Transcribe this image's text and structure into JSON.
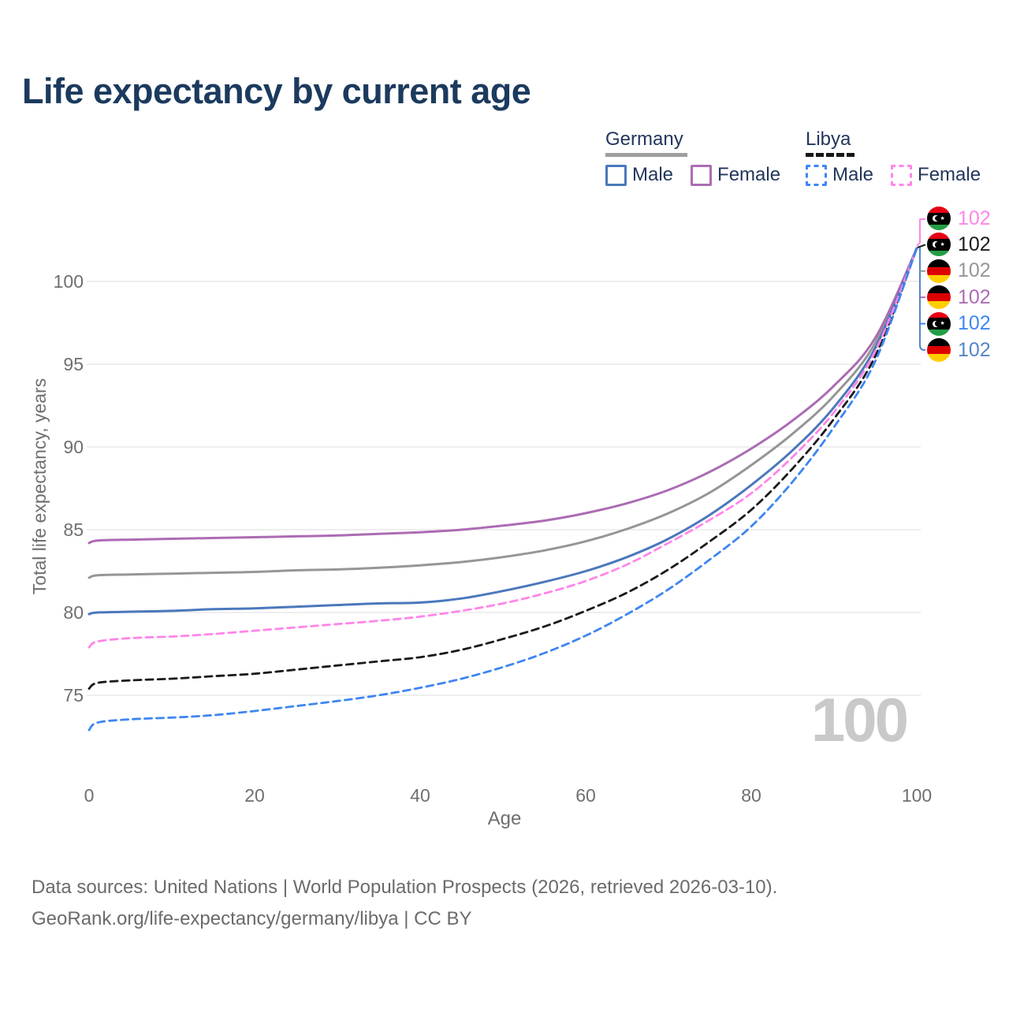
{
  "title": "Life expectancy by current age",
  "legend": {
    "germany": {
      "label": "Germany",
      "male": "Male",
      "female": "Female"
    },
    "libya": {
      "label": "Libya",
      "male": "Male",
      "female": "Female"
    }
  },
  "footer": {
    "line1": "Data sources: United Nations | World Population Prospects (2026, retrieved 2026-03-10).",
    "line2": "GeoRank.org/life-expectancy/germany/libya | CC BY"
  },
  "colors": {
    "title_text": "#1b3a5e",
    "legend_text": "#22365c",
    "germany_underline": "#9e9e9e",
    "libya_underline": "#161616",
    "germany_male": "#4a78bc",
    "germany_female": "#ab6cb3",
    "germany_total": "#969696",
    "libya_male": "#3e86f2",
    "libya_female": "#ff85e8",
    "libya_total": "#1a1a1a",
    "grid": "#e8e8e8",
    "axis_text": "#6f6f6f",
    "watermark": "#c9c9c9"
  },
  "chart_data": {
    "type": "line",
    "title": "Life expectancy by current age",
    "xlabel": "Age",
    "ylabel": "Total life expectancy, years",
    "xticks": [
      0,
      20,
      40,
      60,
      80,
      100
    ],
    "yticks": [
      75,
      80,
      85,
      90,
      95,
      100
    ],
    "xlim": [
      0,
      100
    ],
    "ylim": [
      72,
      103
    ],
    "grid": true,
    "legend_position": "top-right",
    "watermark": "100",
    "x": [
      0,
      1,
      5,
      10,
      15,
      20,
      25,
      30,
      35,
      40,
      45,
      50,
      55,
      60,
      65,
      70,
      75,
      80,
      85,
      90,
      95,
      100
    ],
    "series": [
      {
        "id": "germany-total",
        "name": "Germany",
        "country": "Germany",
        "sex": "Both",
        "style": "solid",
        "color": "#969696",
        "values": [
          82.1,
          82.25,
          82.3,
          82.35,
          82.4,
          82.45,
          82.55,
          82.6,
          82.7,
          82.85,
          83.05,
          83.35,
          83.75,
          84.3,
          85.05,
          86.0,
          87.25,
          88.9,
          90.8,
          93.1,
          96.3,
          102
        ]
      },
      {
        "id": "germany-female",
        "name": "Germany Female",
        "country": "Germany",
        "sex": "Female",
        "style": "solid",
        "color": "#ab6cb3",
        "values": [
          84.2,
          84.35,
          84.4,
          84.45,
          84.5,
          84.55,
          84.6,
          84.65,
          84.75,
          84.85,
          85.0,
          85.25,
          85.55,
          86.0,
          86.6,
          87.4,
          88.5,
          89.9,
          91.6,
          93.7,
          96.6,
          102
        ]
      },
      {
        "id": "germany-male",
        "name": "Germany Male",
        "country": "Germany",
        "sex": "Male",
        "style": "solid",
        "color": "#4a78bc",
        "values": [
          79.9,
          80.0,
          80.05,
          80.1,
          80.2,
          80.25,
          80.35,
          80.45,
          80.55,
          80.6,
          80.85,
          81.3,
          81.85,
          82.5,
          83.35,
          84.45,
          85.9,
          87.7,
          89.8,
          92.4,
          96.0,
          102
        ]
      },
      {
        "id": "libya-total",
        "name": "Libya",
        "country": "Libya",
        "sex": "Both",
        "style": "dashed",
        "color": "#1a1a1a",
        "values": [
          75.4,
          75.75,
          75.9,
          76.0,
          76.15,
          76.3,
          76.55,
          76.8,
          77.05,
          77.3,
          77.75,
          78.4,
          79.15,
          80.1,
          81.2,
          82.6,
          84.3,
          86.2,
          88.7,
          91.7,
          95.5,
          102
        ]
      },
      {
        "id": "libya-female",
        "name": "Libya Female",
        "country": "Libya",
        "sex": "Female",
        "style": "dashed",
        "color": "#ff85e8",
        "values": [
          77.9,
          78.25,
          78.45,
          78.55,
          78.7,
          78.9,
          79.1,
          79.3,
          79.5,
          79.75,
          80.1,
          80.55,
          81.15,
          81.9,
          82.9,
          84.2,
          85.6,
          87.2,
          89.4,
          92.1,
          95.8,
          102
        ]
      },
      {
        "id": "libya-male",
        "name": "Libya Male",
        "country": "Libya",
        "sex": "Male",
        "style": "dashed",
        "color": "#3e86f2",
        "values": [
          72.9,
          73.35,
          73.55,
          73.65,
          73.8,
          74.05,
          74.35,
          74.65,
          75.0,
          75.45,
          76.0,
          76.7,
          77.55,
          78.6,
          79.9,
          81.4,
          83.2,
          85.2,
          87.9,
          91.2,
          95.2,
          102
        ]
      }
    ],
    "right_labels": [
      {
        "country": "Libya",
        "series": "Female",
        "value": "102",
        "color": "#ff85e8"
      },
      {
        "country": "Libya",
        "series": "Both",
        "value": "102",
        "color": "#1a1a1a"
      },
      {
        "country": "Germany",
        "series": "Both",
        "value": "102",
        "color": "#969696"
      },
      {
        "country": "Germany",
        "series": "Female",
        "value": "102",
        "color": "#ab6cb3"
      },
      {
        "country": "Libya",
        "series": "Male",
        "value": "102",
        "color": "#3e86f2"
      },
      {
        "country": "Germany",
        "series": "Male",
        "value": "102",
        "color": "#5585c8"
      }
    ]
  }
}
